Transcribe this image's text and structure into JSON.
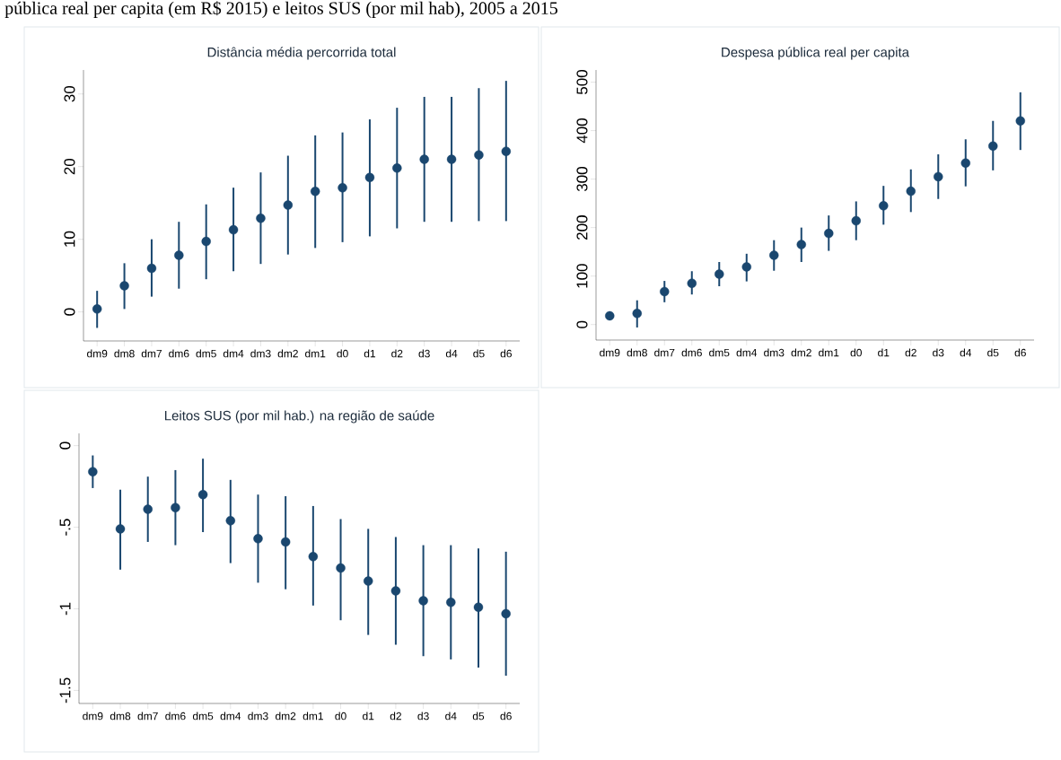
{
  "chart_data": [
    {
      "type": "scatter",
      "title": "Distância média percorrida total",
      "annotations": [
        "pública real per capita (em R$ 2015) e leitos SUS (por mil hab), 2005 a 2015"
      ],
      "categories": [
        "dm9",
        "dm8",
        "dm7",
        "dm6",
        "dm5",
        "dm4",
        "dm3",
        "dm2",
        "dm1",
        "d0",
        "d1",
        "d2",
        "d3",
        "d4",
        "d5",
        "d6"
      ],
      "values": [
        0.4,
        3.6,
        6.0,
        7.8,
        9.7,
        11.3,
        12.9,
        14.7,
        16.6,
        17.1,
        18.5,
        19.8,
        21.0,
        21.0,
        21.6,
        22.1
      ],
      "errors": [
        [
          -2.2,
          2.9
        ],
        [
          0.4,
          6.7
        ],
        [
          2.1,
          10.0
        ],
        [
          3.2,
          12.4
        ],
        [
          4.5,
          14.8
        ],
        [
          5.6,
          17.1
        ],
        [
          6.6,
          19.2
        ],
        [
          7.9,
          21.5
        ],
        [
          8.8,
          24.3
        ],
        [
          9.6,
          24.7
        ],
        [
          10.4,
          26.5
        ],
        [
          11.5,
          28.1
        ],
        [
          12.4,
          29.6
        ],
        [
          12.4,
          29.6
        ],
        [
          12.5,
          30.8
        ],
        [
          12.5,
          31.8
        ]
      ],
      "color": "#1a476f",
      "marker": "circle",
      "ylim": [
        -4,
        33.3
      ],
      "yticks": [
        0,
        10,
        20,
        30
      ]
    },
    {
      "type": "scatter",
      "title": "Despesa pública real per capita",
      "categories": [
        "dm9",
        "dm8",
        "dm7",
        "dm6",
        "dm5",
        "dm4",
        "dm3",
        "dm2",
        "dm1",
        "d0",
        "d1",
        "d2",
        "d3",
        "d4",
        "d5",
        "d6"
      ],
      "values": [
        18,
        23,
        68,
        85,
        104,
        119,
        143,
        165,
        188,
        214,
        245,
        275,
        305,
        333,
        368,
        420
      ],
      "errors": [
        [
          12,
          24
        ],
        [
          -6,
          50
        ],
        [
          46,
          90
        ],
        [
          62,
          110
        ],
        [
          79,
          129
        ],
        [
          89,
          146
        ],
        [
          111,
          174
        ],
        [
          129,
          200
        ],
        [
          152,
          225
        ],
        [
          174,
          254
        ],
        [
          206,
          286
        ],
        [
          232,
          320
        ],
        [
          259,
          351
        ],
        [
          285,
          382
        ],
        [
          318,
          420
        ],
        [
          360,
          479
        ]
      ],
      "color": "#1a476f",
      "marker": "circle",
      "ylim": [
        -32,
        525
      ],
      "yticks": [
        0,
        100,
        200,
        300,
        400,
        500
      ]
    },
    {
      "type": "scatter",
      "title": "Leitos SUS (por mil hab.) na região de saúde",
      "categories": [
        "dm9",
        "dm8",
        "dm7",
        "dm6",
        "dm5",
        "dm4",
        "dm3",
        "dm2",
        "dm1",
        "d0",
        "d1",
        "d2",
        "d3",
        "d4",
        "d5",
        "d6"
      ],
      "values": [
        -0.16,
        -0.51,
        -0.39,
        -0.38,
        -0.3,
        -0.46,
        -0.57,
        -0.59,
        -0.68,
        -0.75,
        -0.83,
        -0.89,
        -0.95,
        -0.96,
        -0.99,
        -1.03
      ],
      "errors": [
        [
          -0.26,
          -0.06
        ],
        [
          -0.76,
          -0.27
        ],
        [
          -0.59,
          -0.19
        ],
        [
          -0.61,
          -0.15
        ],
        [
          -0.53,
          -0.08
        ],
        [
          -0.72,
          -0.21
        ],
        [
          -0.84,
          -0.3
        ],
        [
          -0.88,
          -0.31
        ],
        [
          -0.98,
          -0.37
        ],
        [
          -1.07,
          -0.45
        ],
        [
          -1.16,
          -0.51
        ],
        [
          -1.22,
          -0.56
        ],
        [
          -1.29,
          -0.61
        ],
        [
          -1.31,
          -0.61
        ],
        [
          -1.36,
          -0.63
        ],
        [
          -1.41,
          -0.65
        ]
      ],
      "color": "#1a476f",
      "marker": "circle",
      "ylim": [
        -1.58,
        0.075
      ],
      "yticks": [
        0,
        {
          "value": -0.5,
          "label": "-.5"
        },
        -1,
        -1.5
      ]
    }
  ]
}
